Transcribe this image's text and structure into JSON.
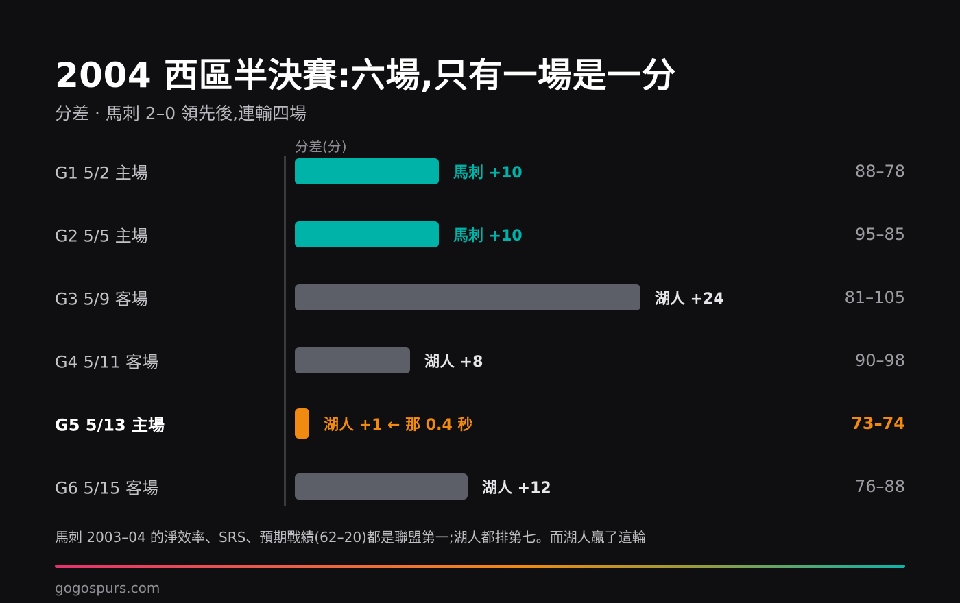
{
  "header": {
    "title": "2004 西區半決賽:六場,只有一場是一分",
    "subtitle": "分差 · 馬刺 2–0 領先後,連輸四場"
  },
  "colors": {
    "spurs": "#00b3a8",
    "lakers": "#5d5f68",
    "highlight": "#f08a10"
  },
  "chart_data": {
    "type": "bar",
    "orientation": "horizontal",
    "xlabel": "分差(分)",
    "xlim": [
      0,
      24
    ],
    "rows": [
      {
        "game": "G1 5/2 主場",
        "winner": "馬刺",
        "margin": 10,
        "label": "馬刺 +10",
        "score": "88–78",
        "team": "spurs",
        "highlight": false
      },
      {
        "game": "G2 5/5 主場",
        "winner": "馬刺",
        "margin": 10,
        "label": "馬刺 +10",
        "score": "95–85",
        "team": "spurs",
        "highlight": false
      },
      {
        "game": "G3 5/9 客場",
        "winner": "湖人",
        "margin": 24,
        "label": "湖人 +24",
        "score": "81–105",
        "team": "lakers",
        "highlight": false
      },
      {
        "game": "G4 5/11 客場",
        "winner": "湖人",
        "margin": 8,
        "label": "湖人 +8",
        "score": "90–98",
        "team": "lakers",
        "highlight": false
      },
      {
        "game": "G5 5/13 主場",
        "winner": "湖人",
        "margin": 1,
        "label": "湖人 +1 ← 那 0.4 秒",
        "score": "73–74",
        "team": "lakers",
        "highlight": true
      },
      {
        "game": "G6 5/15 客場",
        "winner": "湖人",
        "margin": 12,
        "label": "湖人 +12",
        "score": "76–88",
        "team": "lakers",
        "highlight": false
      }
    ]
  },
  "footer": {
    "note": "馬刺 2003–04 的淨效率、SRS、預期戰績(62–20)都是聯盟第一;湖人都排第七。而湖人贏了這輪",
    "source": "gogospurs.com"
  }
}
